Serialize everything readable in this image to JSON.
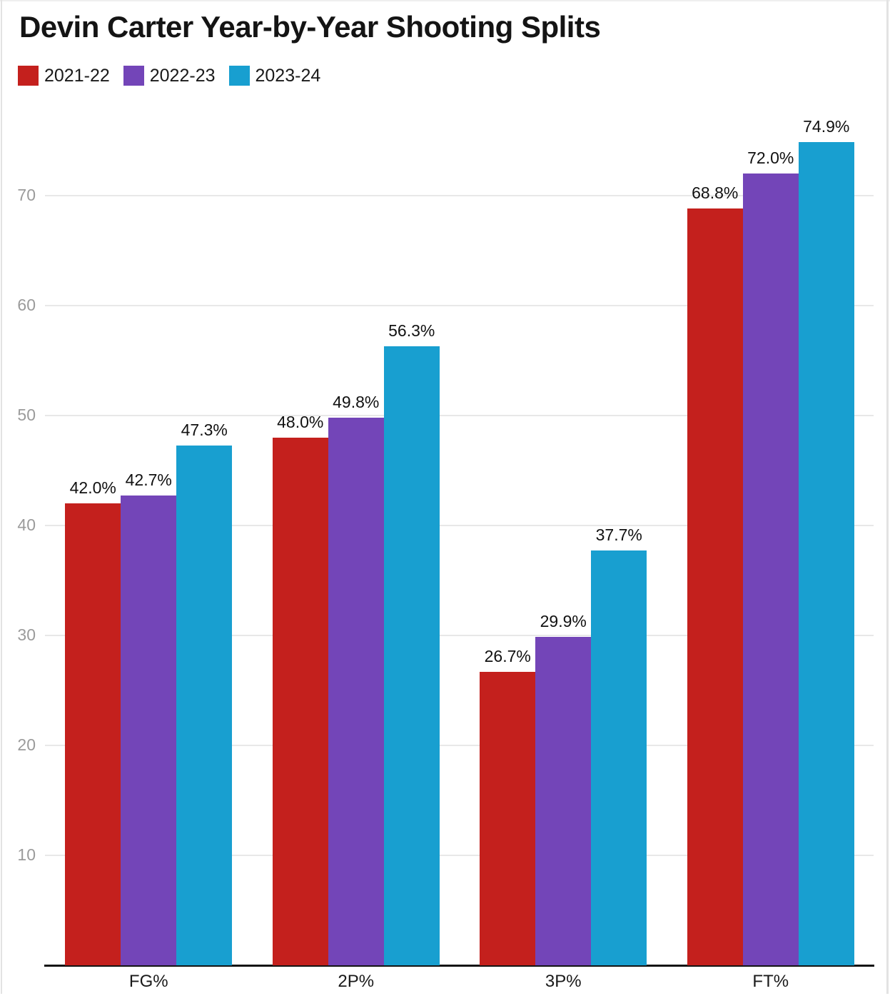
{
  "chart_data": {
    "type": "bar",
    "title": "Devin Carter Year-by-Year Shooting Splits",
    "categories": [
      "FG%",
      "2P%",
      "3P%",
      "FT%"
    ],
    "series": [
      {
        "name": "2021-22",
        "color": "#c4201d",
        "values": [
          42.0,
          48.0,
          26.7,
          68.8
        ],
        "labels": [
          "42.0%",
          "48.0%",
          "26.7%",
          "68.8%"
        ]
      },
      {
        "name": "2022-23",
        "color": "#7345b8",
        "values": [
          42.7,
          49.8,
          29.9,
          72.0
        ],
        "labels": [
          "42.7%",
          "49.8%",
          "29.9%",
          "72.0%"
        ]
      },
      {
        "name": "2023-24",
        "color": "#189fd0",
        "values": [
          47.3,
          56.3,
          37.7,
          74.9
        ],
        "labels": [
          "47.3%",
          "56.3%",
          "37.7%",
          "74.9%"
        ]
      }
    ],
    "yticks": [
      10,
      20,
      30,
      40,
      50,
      60,
      70
    ],
    "ylim": [
      0,
      79.4
    ],
    "xlabel": "",
    "ylabel": "",
    "grid": "horizontal",
    "legend_position": "top-left"
  }
}
